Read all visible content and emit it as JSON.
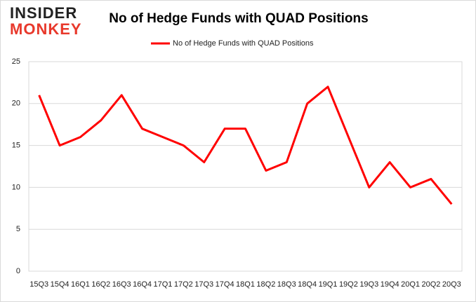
{
  "logo": {
    "line1": "INSIDER",
    "line2": "MONKEY"
  },
  "chart_data": {
    "type": "line",
    "title": "No of Hedge Funds with QUAD Positions",
    "categories": [
      "15Q3",
      "15Q4",
      "16Q1",
      "16Q2",
      "16Q3",
      "16Q4",
      "17Q1",
      "17Q2",
      "17Q3",
      "17Q4",
      "18Q1",
      "18Q2",
      "18Q3",
      "18Q4",
      "19Q1",
      "19Q2",
      "19Q3",
      "19Q4",
      "20Q1",
      "20Q2",
      "20Q3"
    ],
    "series": [
      {
        "name": "No of Hedge Funds with QUAD Positions",
        "color": "#ff0000",
        "values": [
          21,
          15,
          16,
          18,
          21,
          17,
          16,
          15,
          13,
          17,
          17,
          12,
          13,
          20,
          22,
          16,
          10,
          13,
          10,
          11,
          8
        ]
      }
    ],
    "ylim": [
      0,
      25
    ],
    "yticks": [
      0,
      5,
      10,
      15,
      20,
      25
    ],
    "grid": true,
    "legend": "top"
  }
}
